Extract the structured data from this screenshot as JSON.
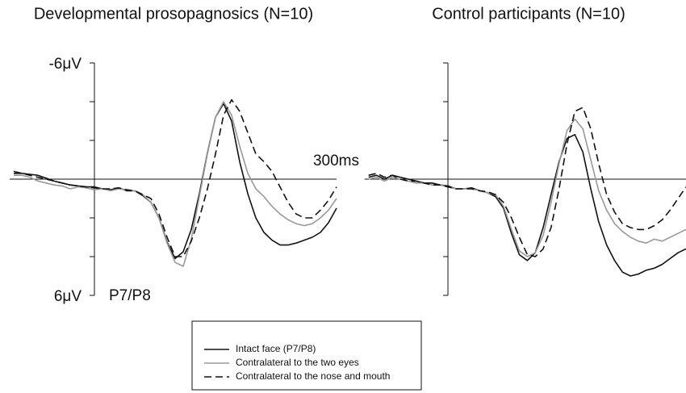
{
  "chart_data": [
    {
      "type": "line",
      "title": "Developmental prosopagnosics (N=10)",
      "x": [
        -100,
        -90,
        -80,
        -70,
        -60,
        -50,
        -40,
        -30,
        -20,
        -10,
        0,
        10,
        20,
        30,
        40,
        50,
        60,
        70,
        80,
        90,
        100,
        110,
        120,
        130,
        140,
        150,
        160,
        170,
        180,
        190,
        200,
        210,
        220,
        230,
        240,
        250,
        260,
        270,
        280,
        290,
        300
      ],
      "xlim": [
        -100,
        300
      ],
      "xticks": [
        {
          "value": 300,
          "label": "300ms"
        }
      ],
      "ylim": [
        -6,
        6
      ],
      "y_inverted": true,
      "yticks": [
        {
          "value": -6,
          "label": "-6μV"
        },
        -4,
        -2,
        0,
        2,
        4,
        {
          "value": 6,
          "label": "6μV"
        }
      ],
      "annotation": "P7/P8",
      "series": [
        {
          "color": "#111111",
          "dash": false,
          "values": [
            -0.4,
            -0.3,
            -0.25,
            -0.2,
            -0.05,
            0.1,
            0.2,
            0.3,
            0.35,
            0.4,
            0.4,
            0.5,
            0.55,
            0.45,
            0.6,
            0.6,
            0.85,
            1.2,
            2.0,
            3.25,
            4.1,
            3.75,
            2.6,
            0.75,
            -1.35,
            -3.2,
            -3.9,
            -3.0,
            -0.9,
            0.75,
            2.0,
            2.75,
            3.15,
            3.4,
            3.4,
            3.3,
            3.15,
            3.0,
            2.75,
            2.25,
            1.5
          ]
        },
        {
          "color": "#999999",
          "dash": false,
          "values": [
            -0.2,
            -0.2,
            -0.1,
            0.1,
            0.2,
            0.3,
            0.35,
            0.5,
            0.4,
            0.45,
            0.55,
            0.5,
            0.6,
            0.5,
            0.55,
            0.6,
            0.8,
            1.2,
            2.0,
            3.3,
            4.3,
            4.5,
            3.1,
            0.9,
            -1.3,
            -3.2,
            -4.0,
            -3.3,
            -1.7,
            -0.3,
            0.5,
            0.9,
            1.4,
            1.8,
            2.1,
            2.3,
            2.4,
            2.3,
            2.0,
            1.6,
            1.0
          ]
        },
        {
          "color": "#111111",
          "dash": true,
          "values": [
            -0.3,
            -0.3,
            -0.2,
            -0.1,
            0.0,
            0.1,
            0.2,
            0.3,
            0.35,
            0.4,
            0.45,
            0.5,
            0.5,
            0.45,
            0.55,
            0.6,
            0.8,
            1.0,
            1.8,
            3.0,
            4.0,
            4.0,
            3.2,
            2.0,
            0.5,
            -1.3,
            -3.3,
            -4.1,
            -3.5,
            -2.4,
            -1.3,
            -0.9,
            -0.4,
            0.4,
            1.2,
            1.8,
            2.0,
            2.0,
            1.6,
            1.1,
            0.4
          ]
        }
      ]
    },
    {
      "type": "line",
      "title": "Control participants (N=10)",
      "x": [
        -100,
        -90,
        -80,
        -70,
        -60,
        -50,
        -40,
        -30,
        -20,
        -10,
        0,
        10,
        20,
        30,
        40,
        50,
        60,
        70,
        80,
        90,
        100,
        110,
        120,
        130,
        140,
        150,
        160,
        170,
        180,
        190,
        200,
        210,
        220,
        230,
        240,
        250,
        260,
        270,
        280,
        290,
        300
      ],
      "xlim": [
        -100,
        300
      ],
      "ylim": [
        -6,
        6
      ],
      "y_inverted": true,
      "yticks": [
        -6,
        -4,
        -2,
        0,
        2,
        4,
        6
      ],
      "series": [
        {
          "color": "#111111",
          "dash": false,
          "values": [
            -0.1,
            -0.2,
            0.0,
            -0.2,
            -0.1,
            0.0,
            0.1,
            0.2,
            0.2,
            0.3,
            0.35,
            0.5,
            0.5,
            0.45,
            0.6,
            0.7,
            0.9,
            1.5,
            2.8,
            3.9,
            4.2,
            3.8,
            2.5,
            0.8,
            -0.9,
            -2.1,
            -2.3,
            -1.4,
            0.5,
            2.2,
            3.4,
            4.2,
            4.8,
            5.0,
            4.9,
            4.7,
            4.6,
            4.4,
            4.1,
            3.8,
            3.6
          ]
        },
        {
          "color": "#999999",
          "dash": false,
          "values": [
            0.0,
            -0.1,
            0.1,
            -0.1,
            0.0,
            0.1,
            0.2,
            0.2,
            0.3,
            0.3,
            0.4,
            0.5,
            0.5,
            0.5,
            0.6,
            0.7,
            0.8,
            1.4,
            2.6,
            3.7,
            4.0,
            3.8,
            2.9,
            1.2,
            -0.8,
            -2.5,
            -3.1,
            -2.6,
            -1.0,
            0.6,
            1.6,
            2.3,
            2.7,
            3.0,
            3.2,
            3.3,
            3.1,
            3.2,
            3.0,
            2.8,
            2.6
          ]
        },
        {
          "color": "#111111",
          "dash": true,
          "values": [
            -0.2,
            -0.3,
            -0.1,
            -0.2,
            0.0,
            0.1,
            0.1,
            0.2,
            0.3,
            0.3,
            0.4,
            0.5,
            0.5,
            0.5,
            0.6,
            0.65,
            0.8,
            1.2,
            2.0,
            3.0,
            3.9,
            4.0,
            3.6,
            2.5,
            0.5,
            -1.8,
            -3.5,
            -3.7,
            -2.6,
            -0.8,
            0.8,
            1.7,
            2.3,
            2.5,
            2.6,
            2.6,
            2.4,
            2.1,
            1.6,
            1.0,
            0.4
          ]
        }
      ]
    }
  ],
  "legend": {
    "entries": [
      {
        "name": "Intact face (P7/P8)",
        "color": "#111111",
        "dash": false
      },
      {
        "name": "Contralateral to the two eyes",
        "color": "#999999",
        "dash": false
      },
      {
        "name": "Contralateral to the nose and mouth",
        "color": "#111111",
        "dash": true
      }
    ]
  }
}
